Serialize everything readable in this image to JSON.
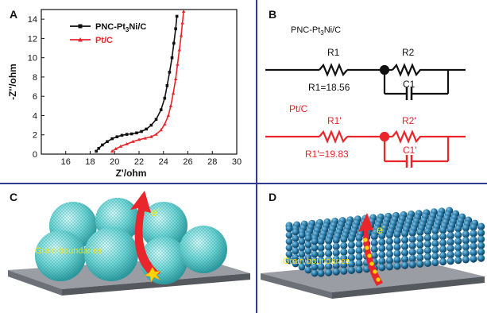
{
  "panels": {
    "a": "A",
    "b": "B",
    "c": "C",
    "d": "D"
  },
  "chart_data": {
    "type": "line",
    "xlabel": "Z'/ohm",
    "ylabel": "-Z''/ohm",
    "xlim": [
      14,
      30
    ],
    "ylim": [
      0,
      15
    ],
    "xticks": [
      16,
      18,
      20,
      22,
      24,
      26,
      28,
      30
    ],
    "yticks": [
      0,
      2,
      4,
      6,
      8,
      10,
      12,
      14
    ],
    "grid": false,
    "legend_position": "top-left",
    "series": [
      {
        "name": "PNC-Pt3Ni/C",
        "color": "#111111",
        "marker": "square",
        "points": [
          [
            18.5,
            0.3
          ],
          [
            18.7,
            0.6
          ],
          [
            19.0,
            0.95
          ],
          [
            19.4,
            1.3
          ],
          [
            19.8,
            1.6
          ],
          [
            20.2,
            1.8
          ],
          [
            20.6,
            1.95
          ],
          [
            21.0,
            2.05
          ],
          [
            21.4,
            2.1
          ],
          [
            21.8,
            2.2
          ],
          [
            22.2,
            2.35
          ],
          [
            22.6,
            2.6
          ],
          [
            23.0,
            3.0
          ],
          [
            23.4,
            3.6
          ],
          [
            23.8,
            4.6
          ],
          [
            24.1,
            5.8
          ],
          [
            24.3,
            7.1
          ],
          [
            24.5,
            8.5
          ],
          [
            24.7,
            10.0
          ],
          [
            24.85,
            11.5
          ],
          [
            25.0,
            13.0
          ],
          [
            25.1,
            14.3
          ]
        ]
      },
      {
        "name": "Pt/C",
        "color": "#e8262b",
        "marker": "triangle",
        "points": [
          [
            19.8,
            0.3
          ],
          [
            20.1,
            0.55
          ],
          [
            20.5,
            0.8
          ],
          [
            21.0,
            1.05
          ],
          [
            21.5,
            1.3
          ],
          [
            22.0,
            1.5
          ],
          [
            22.5,
            1.65
          ],
          [
            23.0,
            1.8
          ],
          [
            23.4,
            2.05
          ],
          [
            23.8,
            2.5
          ],
          [
            24.1,
            3.1
          ],
          [
            24.4,
            4.0
          ],
          [
            24.6,
            5.0
          ],
          [
            24.8,
            6.3
          ],
          [
            25.0,
            7.8
          ],
          [
            25.15,
            9.3
          ],
          [
            25.3,
            10.8
          ],
          [
            25.45,
            12.3
          ],
          [
            25.55,
            13.6
          ],
          [
            25.65,
            14.8
          ]
        ]
      }
    ]
  },
  "circuits": {
    "top": {
      "title_prefix": "PNC-Pt",
      "title_sub1": "3",
      "title_mid": "Ni/C",
      "r1_label": "R1",
      "r2_label": "R2",
      "c1_label": "C1",
      "r1_value": "R1=18.56",
      "color": "#111111"
    },
    "bottom": {
      "title": "Pt/C",
      "r1_label": "R1'",
      "r2_label": "R2'",
      "c1_label": "C1'",
      "r1_value": "R1'=19.83",
      "color": "#e8262b"
    }
  },
  "illustrations": {
    "c": {
      "electron_label": "e",
      "electron_sup": "-",
      "boundaries_label": "Grain boundaries"
    },
    "d": {
      "electron_label": "e",
      "electron_sup": "-",
      "boundaries_label": "Grain boundaries"
    }
  }
}
